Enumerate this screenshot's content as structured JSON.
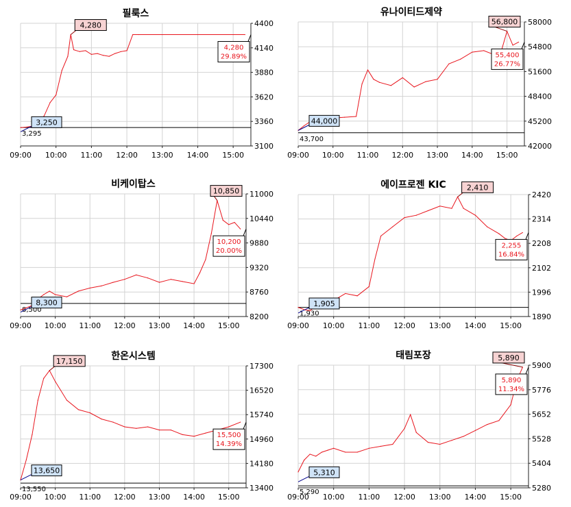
{
  "chart_data": [
    {
      "type": "line",
      "title": "필룩스",
      "x_ticks": [
        "09:00",
        "10:00",
        "11:00",
        "12:00",
        "13:00",
        "14:00",
        "15:00"
      ],
      "y_ticks": [
        "3100",
        "3360",
        "3620",
        "3880",
        "4140",
        "4400"
      ],
      "ylim": [
        3100,
        4400
      ],
      "xlim": [
        "09:00",
        "15:30"
      ],
      "reference_line": 3295,
      "reference_label": "3,295",
      "low_callout": {
        "time": "09:00",
        "value": 3250,
        "label": "3,250"
      },
      "high_callout": {
        "time": "10:25",
        "value": 4280,
        "label": "4,280"
      },
      "last": {
        "price": "4,280",
        "change": "29.89%",
        "value": 4280
      },
      "series": [
        {
          "x": [
            "09:00",
            "09:10",
            "09:20",
            "09:30",
            "09:40",
            "09:50",
            "10:00",
            "10:10",
            "10:20",
            "10:25",
            "10:30",
            "10:40",
            "10:50",
            "11:00",
            "11:10",
            "11:20",
            "11:30",
            "11:40",
            "11:50",
            "12:00",
            "12:10",
            "12:20",
            "13:00",
            "14:00",
            "15:00",
            "15:20"
          ],
          "y": [
            3295,
            3300,
            3310,
            3340,
            3420,
            3560,
            3640,
            3900,
            4050,
            4280,
            4120,
            4100,
            4110,
            4070,
            4080,
            4060,
            4050,
            4080,
            4100,
            4110,
            4280,
            4280,
            4280,
            4280,
            4280,
            4280
          ]
        }
      ]
    },
    {
      "type": "line",
      "title": "유나이티드제약",
      "x_ticks": [
        "09:00",
        "10:00",
        "11:00",
        "12:00",
        "13:00",
        "14:00",
        "15:00"
      ],
      "y_ticks": [
        "42000",
        "45200",
        "48400",
        "51600",
        "54800",
        "58000"
      ],
      "ylim": [
        42000,
        58000
      ],
      "xlim": [
        "09:00",
        "15:30"
      ],
      "reference_line": 43700,
      "reference_label": "43,700",
      "low_callout": {
        "time": "09:00",
        "value": 44000,
        "label": "44,000"
      },
      "high_callout": {
        "time": "15:00",
        "value": 56800,
        "label": "56,800"
      },
      "last": {
        "price": "55,400",
        "change": "26.77%",
        "value": 55400
      },
      "series": [
        {
          "x": [
            "09:00",
            "09:10",
            "09:20",
            "09:30",
            "09:40",
            "09:50",
            "10:00",
            "10:20",
            "10:40",
            "10:50",
            "11:00",
            "11:10",
            "11:20",
            "11:40",
            "12:00",
            "12:20",
            "12:40",
            "13:00",
            "13:20",
            "13:40",
            "14:00",
            "14:20",
            "14:40",
            "14:50",
            "15:00",
            "15:10",
            "15:20"
          ],
          "y": [
            44000,
            44600,
            45100,
            45300,
            45500,
            45600,
            45600,
            45700,
            45800,
            50000,
            51800,
            50600,
            50200,
            49800,
            50800,
            49600,
            50300,
            50600,
            52600,
            53200,
            54100,
            54300,
            53700,
            54200,
            56800,
            55000,
            55400
          ]
        }
      ]
    },
    {
      "type": "line",
      "title": "비케이탑스",
      "x_ticks": [
        "09:00",
        "10:00",
        "11:00",
        "12:00",
        "13:00",
        "14:00",
        "15:00"
      ],
      "y_ticks": [
        "8200",
        "8760",
        "9320",
        "9880",
        "10440",
        "11000"
      ],
      "ylim": [
        8200,
        11000
      ],
      "xlim": [
        "09:00",
        "15:30"
      ],
      "reference_line": 8500,
      "reference_label": "8,500",
      "low_callout": {
        "time": "09:00",
        "value": 8300,
        "label": "8,300"
      },
      "high_callout": {
        "time": "14:40",
        "value": 10850,
        "label": "10,850"
      },
      "last": {
        "price": "10,200",
        "change": "20.00%",
        "value": 10200
      },
      "series": [
        {
          "x": [
            "09:00",
            "09:10",
            "09:20",
            "09:30",
            "09:40",
            "09:50",
            "10:00",
            "10:20",
            "10:40",
            "11:00",
            "11:20",
            "11:40",
            "12:00",
            "12:20",
            "12:40",
            "13:00",
            "13:20",
            "13:40",
            "14:00",
            "14:10",
            "14:20",
            "14:30",
            "14:40",
            "14:50",
            "15:00",
            "15:10",
            "15:20"
          ],
          "y": [
            8350,
            8400,
            8450,
            8600,
            8700,
            8780,
            8700,
            8650,
            8780,
            8850,
            8900,
            8980,
            9050,
            9150,
            9080,
            8980,
            9050,
            9000,
            8950,
            9200,
            9500,
            10100,
            10850,
            10400,
            10300,
            10350,
            10200
          ]
        }
      ]
    },
    {
      "type": "line",
      "title": "에이프로젠 KIC",
      "x_ticks": [
        "09:00",
        "10:00",
        "11:00",
        "12:00",
        "13:00",
        "14:00",
        "15:00"
      ],
      "y_ticks": [
        "1890",
        "1996",
        "2102",
        "2208",
        "2314",
        "2420"
      ],
      "ylim": [
        1890,
        2420
      ],
      "xlim": [
        "09:00",
        "15:30"
      ],
      "reference_line": 1930,
      "reference_label": "1,930",
      "low_callout": {
        "time": "09:00",
        "value": 1905,
        "label": "1,905"
      },
      "high_callout": {
        "time": "13:30",
        "value": 2410,
        "label": "2,410"
      },
      "last": {
        "price": "2,255",
        "change": "16.84%",
        "value": 2255
      },
      "series": [
        {
          "x": [
            "09:00",
            "09:10",
            "09:20",
            "09:30",
            "09:40",
            "09:50",
            "10:00",
            "10:20",
            "10:40",
            "11:00",
            "11:10",
            "11:20",
            "11:40",
            "12:00",
            "12:20",
            "12:40",
            "13:00",
            "13:20",
            "13:30",
            "13:40",
            "14:00",
            "14:20",
            "14:40",
            "14:50",
            "15:00",
            "15:10",
            "15:20"
          ],
          "y": [
            1930,
            1920,
            1915,
            1935,
            1940,
            1950,
            1960,
            1990,
            1980,
            2020,
            2140,
            2240,
            2280,
            2320,
            2330,
            2350,
            2370,
            2360,
            2410,
            2360,
            2330,
            2280,
            2250,
            2230,
            2220,
            2240,
            2255
          ]
        }
      ]
    },
    {
      "type": "line",
      "title": "한온시스템",
      "x_ticks": [
        "09:00",
        "10:00",
        "11:00",
        "12:00",
        "13:00",
        "14:00",
        "15:00"
      ],
      "y_ticks": [
        "13400",
        "14180",
        "14960",
        "15740",
        "16520",
        "17300"
      ],
      "ylim": [
        13400,
        17300
      ],
      "xlim": [
        "09:00",
        "15:30"
      ],
      "reference_line": 13550,
      "reference_label": "13,550",
      "low_callout": {
        "time": "09:00",
        "value": 13650,
        "label": "13,650"
      },
      "high_callout": {
        "time": "09:50",
        "value": 17150,
        "label": "17,150"
      },
      "last": {
        "price": "15,500",
        "change": "14.39%",
        "value": 15500
      },
      "series": [
        {
          "x": [
            "09:00",
            "09:10",
            "09:20",
            "09:30",
            "09:40",
            "09:50",
            "10:00",
            "10:20",
            "10:40",
            "11:00",
            "11:20",
            "11:40",
            "12:00",
            "12:20",
            "12:40",
            "13:00",
            "13:20",
            "13:40",
            "14:00",
            "14:20",
            "14:40",
            "15:00",
            "15:20"
          ],
          "y": [
            13650,
            14300,
            15100,
            16200,
            16900,
            17150,
            16800,
            16200,
            15900,
            15800,
            15600,
            15500,
            15350,
            15300,
            15350,
            15250,
            15250,
            15100,
            15050,
            15150,
            15250,
            15350,
            15500
          ]
        }
      ]
    },
    {
      "type": "line",
      "title": "태림포장",
      "x_ticks": [
        "09:00",
        "10:00",
        "11:00",
        "12:00",
        "13:00",
        "14:00",
        "15:00"
      ],
      "y_ticks": [
        "5280",
        "5404",
        "5528",
        "5652",
        "5776",
        "5900"
      ],
      "ylim": [
        5280,
        5900
      ],
      "xlim": [
        "09:00",
        "15:30"
      ],
      "reference_line": 5290,
      "reference_label": "5,290",
      "low_callout": {
        "time": "09:00",
        "value": 5310,
        "label": "5,310"
      },
      "high_callout": {
        "time": "15:20",
        "value": 5890,
        "label": "5,890"
      },
      "last": {
        "price": "5,890",
        "change": "11.34%",
        "value": 5890
      },
      "series": [
        {
          "x": [
            "09:00",
            "09:10",
            "09:20",
            "09:30",
            "09:40",
            "09:50",
            "10:00",
            "10:20",
            "10:40",
            "11:00",
            "11:20",
            "11:40",
            "12:00",
            "12:10",
            "12:20",
            "12:40",
            "13:00",
            "13:20",
            "13:40",
            "14:00",
            "14:20",
            "14:40",
            "15:00",
            "15:10",
            "15:20"
          ],
          "y": [
            5360,
            5420,
            5450,
            5440,
            5460,
            5470,
            5480,
            5460,
            5460,
            5480,
            5490,
            5500,
            5580,
            5650,
            5560,
            5510,
            5500,
            5520,
            5540,
            5570,
            5600,
            5620,
            5700,
            5820,
            5890
          ]
        }
      ]
    }
  ]
}
